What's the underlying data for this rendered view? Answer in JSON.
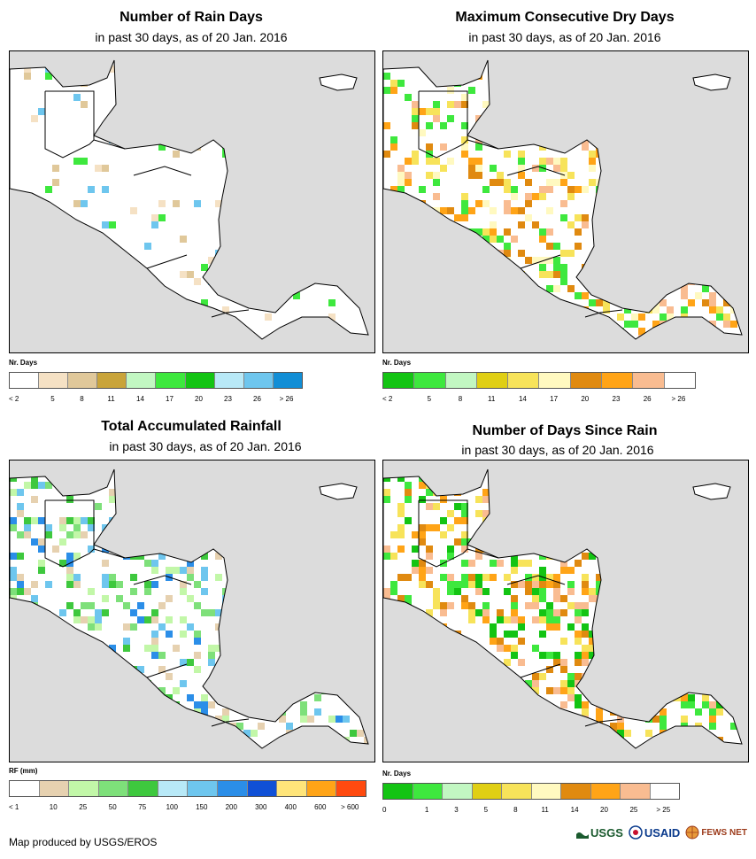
{
  "panels": [
    {
      "title": "Number of Rain Days",
      "subtitle": "in past 30 days, as of 20 Jan. 2016",
      "legend_title": "Nr. Days",
      "legend_colors": [
        "#ffffff",
        "#f5e1c4",
        "#e0c89a",
        "#c9a43a",
        "#c2f7c2",
        "#3ee83e",
        "#13c413",
        "#b8e9f7",
        "#6ec6ee",
        "#118ed6"
      ],
      "legend_labels": [
        "< 2",
        "5",
        "8",
        "11",
        "14",
        "17",
        "20",
        "23",
        "26",
        "> 26"
      ],
      "land_color": "#ffffff",
      "cell_colors": [
        "#f5e1c4",
        "#e0c89a",
        "#3ee83e",
        "#6ec6ee"
      ]
    },
    {
      "title": "Maximum Consecutive Dry Days",
      "subtitle": "in past 30 days, as of 20 Jan. 2016",
      "legend_title": "Nr. Days",
      "legend_colors": [
        "#13c413",
        "#3ee83e",
        "#c2f7c2",
        "#e0cf14",
        "#f7e35a",
        "#fff9c0",
        "#e08a10",
        "#ffa417",
        "#f9bc91",
        "#ffffff"
      ],
      "legend_labels": [
        "< 2",
        "5",
        "8",
        "11",
        "14",
        "17",
        "20",
        "23",
        "26",
        "> 26"
      ],
      "land_color": "#ffffff",
      "cell_colors": [
        "#fff9c0",
        "#f7e35a",
        "#ffa417",
        "#e08a10",
        "#f9bc91",
        "#3ee83e"
      ]
    },
    {
      "title": "Total Accumulated Rainfall",
      "subtitle": "in past 30 days, as of 20 Jan. 2016",
      "legend_title": "RF (mm)",
      "legend_colors": [
        "#ffffff",
        "#e6d1b0",
        "#c2f7a8",
        "#7ee07a",
        "#3ec83e",
        "#b8e9f7",
        "#6ec6ee",
        "#2b8ee8",
        "#1050d6",
        "#ffe57a",
        "#ffa417",
        "#ff4a0f"
      ],
      "legend_labels": [
        "< 1",
        "10",
        "25",
        "50",
        "75",
        "100",
        "150",
        "200",
        "300",
        "400",
        "600",
        "> 600"
      ],
      "land_color": "#ffffff",
      "cell_colors": [
        "#e6d1b0",
        "#c2f7a8",
        "#7ee07a",
        "#3ec83e",
        "#6ec6ee",
        "#2b8ee8"
      ]
    },
    {
      "title": "Number of Days Since Rain",
      "subtitle": "in past 30 days, as of 20 Jan. 2016",
      "legend_title": "Nr. Days",
      "legend_colors": [
        "#13c413",
        "#3ee83e",
        "#c2f7c2",
        "#e0cf14",
        "#f7e35a",
        "#fff9c0",
        "#e08a10",
        "#ffa417",
        "#f9bc91",
        "#ffffff"
      ],
      "legend_labels": [
        "0",
        "1",
        "3",
        "5",
        "8",
        "11",
        "14",
        "20",
        "25",
        "> 25"
      ],
      "land_color": "#ffffff",
      "cell_colors": [
        "#13c413",
        "#3ee83e",
        "#ffa417",
        "#e08a10",
        "#f7e35a",
        "#f9bc91"
      ]
    }
  ],
  "credit": "Map produced by USGS/EROS",
  "logos": [
    "USGS",
    "USAID",
    "FEWS NET"
  ]
}
